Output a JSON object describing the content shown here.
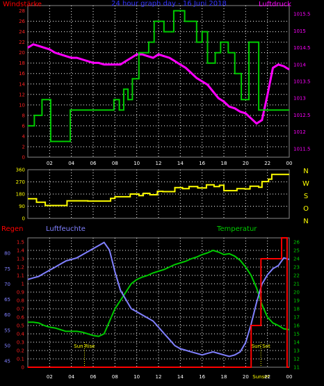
{
  "chart_data": [
    {
      "type": "line",
      "title": "24 hour graph day - 16 Juni 2018",
      "left_label": "Windstärke",
      "right_label": "Luftdruck",
      "x_ticks": [
        "02",
        "04",
        "06",
        "08",
        "10",
        "12",
        "14",
        "16",
        "18",
        "20",
        "22",
        "00"
      ],
      "y_left_ticks": [
        "28",
        "26",
        "24",
        "22",
        "20",
        "18",
        "16",
        "14",
        "12",
        "10",
        "8",
        "6",
        "4",
        "2",
        "0"
      ],
      "y_left_range": [
        0,
        29
      ],
      "y_right_ticks": [
        "1015.5",
        "1015",
        "1014.5",
        "1014",
        "1013.5",
        "1013",
        "1012.5",
        "1012",
        "1011.5"
      ],
      "y_right_range": [
        1011.25,
        1015.75
      ],
      "grid": true,
      "colors": {
        "wind": "#00cc00",
        "pressure": "#ff00ff"
      },
      "series": [
        {
          "name": "Windstärke",
          "axis": "left",
          "x": [
            0,
            0.6,
            0.6,
            1.3,
            1.3,
            2.1,
            2.1,
            3.9,
            3.9,
            7.9,
            7.9,
            8.4,
            8.4,
            8.8,
            8.8,
            9.2,
            9.2,
            9.6,
            9.6,
            10.2,
            10.2,
            11.1,
            11.1,
            11.6,
            11.6,
            12.5,
            12.5,
            13.4,
            13.4,
            14.4,
            14.4,
            15.5,
            15.5,
            16.0,
            16.0,
            16.5,
            16.5,
            17.2,
            17.2,
            17.7,
            17.7,
            18.4,
            18.4,
            19.0,
            19.0,
            19.6,
            19.6,
            20.3,
            20.3,
            21.2,
            21.2,
            22.2,
            22.2,
            24
          ],
          "y": [
            6,
            6,
            8,
            8,
            11,
            11,
            3,
            3,
            9,
            9,
            11,
            11,
            9,
            9,
            13,
            13,
            11,
            11,
            15,
            15,
            20,
            20,
            22,
            22,
            26,
            26,
            24,
            24,
            28,
            28,
            26,
            26,
            22,
            22,
            24,
            24,
            18,
            18,
            20,
            20,
            22,
            22,
            20,
            20,
            16,
            16,
            11,
            11,
            22,
            22,
            9,
            9,
            9,
            9
          ]
        },
        {
          "name": "Luftdruck",
          "axis": "right",
          "x": [
            0,
            0.5,
            1,
            1.5,
            2,
            2.5,
            3,
            3.5,
            4,
            4.5,
            5,
            5.5,
            6,
            6.5,
            7,
            7.5,
            8,
            8.5,
            9,
            9.5,
            10,
            10.5,
            11,
            11.5,
            12,
            12.5,
            13,
            13.5,
            14,
            14.5,
            15,
            15.5,
            16,
            16.5,
            17,
            17.5,
            18,
            18.5,
            19,
            19.5,
            20,
            20.5,
            21,
            21.5,
            22,
            22.5,
            23,
            23.5,
            24
          ],
          "y": [
            1014.5,
            1014.6,
            1014.55,
            1014.5,
            1014.45,
            1014.35,
            1014.3,
            1014.25,
            1014.2,
            1014.2,
            1014.15,
            1014.1,
            1014.05,
            1014.05,
            1014.0,
            1014.0,
            1014.0,
            1014.0,
            1014.1,
            1014.2,
            1014.3,
            1014.3,
            1014.25,
            1014.2,
            1014.3,
            1014.25,
            1014.2,
            1014.1,
            1014.0,
            1013.9,
            1013.75,
            1013.6,
            1013.5,
            1013.4,
            1013.2,
            1013.0,
            1012.9,
            1012.75,
            1012.7,
            1012.6,
            1012.55,
            1012.4,
            1012.25,
            1012.35,
            1013.1,
            1013.9,
            1014.0,
            1013.95,
            1013.85
          ]
        }
      ]
    },
    {
      "type": "line",
      "right_side_labels": [
        "N",
        "W",
        "S",
        "O",
        "N"
      ],
      "y_ticks": [
        "360",
        "270",
        "180",
        "90",
        "0"
      ],
      "y_range": [
        0,
        360
      ],
      "grid": true,
      "color": "#ffff00",
      "series": [
        {
          "name": "wind direction",
          "x": [
            0,
            0.8,
            0.8,
            1.6,
            1.6,
            3.6,
            3.6,
            5.5,
            5.5,
            7.6,
            7.6,
            8.0,
            8.0,
            9.4,
            9.4,
            10.2,
            10.2,
            10.6,
            10.6,
            11.2,
            11.2,
            11.9,
            11.9,
            12.4,
            12.4,
            13.5,
            13.5,
            14.2,
            14.2,
            14.8,
            14.8,
            15.6,
            15.6,
            16.4,
            16.4,
            17.1,
            17.1,
            17.6,
            17.6,
            18.0,
            18.0,
            19.2,
            19.2,
            19.9,
            19.9,
            20.4,
            20.4,
            21.2,
            21.2,
            21.5,
            21.5,
            22.1,
            22.1,
            22.4,
            22.4,
            24
          ],
          "y": [
            145,
            145,
            120,
            120,
            95,
            95,
            130,
            130,
            128,
            128,
            148,
            148,
            160,
            160,
            180,
            180,
            168,
            168,
            185,
            185,
            175,
            175,
            200,
            200,
            198,
            198,
            228,
            228,
            220,
            220,
            235,
            235,
            225,
            225,
            248,
            248,
            235,
            235,
            245,
            245,
            205,
            205,
            220,
            220,
            218,
            218,
            238,
            238,
            230,
            230,
            272,
            272,
            290,
            290,
            325,
            325
          ]
        }
      ]
    },
    {
      "type": "line",
      "left_labels": [
        "Regen",
        "Luftfeuchte"
      ],
      "center_label": "Temperatur",
      "y_rain_ticks": [
        "1.5",
        "1.4",
        "1.3",
        "1.2",
        "1.1",
        "1",
        "0.9",
        "0.8",
        "0.7",
        "0.6",
        "0.5",
        "0.4",
        "0.3",
        "0.2",
        "0.1",
        "0"
      ],
      "y_rain_range": [
        0,
        1.55
      ],
      "y_humidity_ticks": [
        "80",
        "75",
        "70",
        "65",
        "60",
        "55",
        "50",
        "45"
      ],
      "y_humidity_range": [
        43,
        85
      ],
      "y_temp_ticks": [
        "26",
        "25",
        "24",
        "23",
        "22",
        "21",
        "20",
        "19",
        "18",
        "17",
        "16",
        "15",
        "14",
        "13",
        "12",
        "11"
      ],
      "y_temp_range": [
        11,
        26.5
      ],
      "x_ticks": [
        "02",
        "04",
        "06",
        "08",
        "10",
        "12",
        "14",
        "16",
        "18",
        "20",
        "22",
        "00"
      ],
      "markers": [
        {
          "label": "Sun Rise",
          "x": 5.2
        },
        {
          "label": "Sun Set",
          "x": 21.4
        }
      ],
      "extra_label": "Sunset",
      "grid": true,
      "colors": {
        "rain": "#ff0000",
        "humidity": "#8080ff",
        "temperature": "#00cc00"
      },
      "series": [
        {
          "name": "Regen",
          "x": [
            0,
            20.5,
            20.5,
            21.4,
            21.4,
            23.3,
            23.3,
            23.8,
            23.8,
            24
          ],
          "y": [
            0,
            0,
            0.5,
            0.5,
            1.3,
            1.3,
            1.55,
            1.55,
            0,
            0
          ]
        },
        {
          "name": "Luftfeuchte",
          "x": [
            0,
            0.5,
            1,
            1.5,
            2,
            2.5,
            3,
            3.5,
            4,
            4.5,
            5,
            5.5,
            6,
            6.5,
            7,
            7.5,
            8,
            8.5,
            9,
            9.5,
            10,
            10.5,
            11,
            11.5,
            12,
            12.5,
            13,
            13.5,
            14,
            14.5,
            15,
            15.5,
            16,
            16.5,
            17,
            17.5,
            18,
            18.5,
            19,
            19.5,
            20,
            20.5,
            21,
            21.5,
            22,
            22.5,
            23,
            23.5,
            24
          ],
          "y": [
            71.5,
            72,
            72.5,
            73.5,
            74.5,
            75.5,
            76.5,
            77.5,
            78,
            78.5,
            79.5,
            80.5,
            81.5,
            82.5,
            83.5,
            81,
            74,
            68,
            65,
            62,
            61,
            60,
            59,
            58,
            56,
            54,
            52,
            50,
            49,
            48.5,
            48,
            47.5,
            47,
            47.5,
            48,
            47.5,
            47,
            46.5,
            47,
            48,
            51,
            57,
            64,
            70,
            73,
            75,
            76,
            78.5,
            78
          ]
        },
        {
          "name": "Temperatur",
          "x": [
            0,
            0.5,
            1,
            1.5,
            2,
            2.5,
            3,
            3.5,
            4,
            4.5,
            5,
            5.5,
            6,
            6.5,
            7,
            7.5,
            8,
            8.5,
            9,
            9.5,
            10,
            10.5,
            11,
            11.5,
            12,
            12.5,
            13,
            13.5,
            14,
            14.5,
            15,
            15.5,
            16,
            16.5,
            17,
            17.5,
            18,
            18.5,
            19,
            19.5,
            20,
            20.5,
            21,
            21.5,
            22,
            22.5,
            23,
            23.5,
            24
          ],
          "y": [
            16.4,
            16.4,
            16.3,
            16.0,
            15.8,
            15.7,
            15.5,
            15.3,
            15.3,
            15.3,
            15.2,
            15.0,
            14.8,
            14.7,
            15.0,
            16.5,
            18,
            19,
            20.0,
            21.0,
            21.5,
            21.8,
            22,
            22.3,
            22.5,
            22.7,
            23,
            23.3,
            23.5,
            23.7,
            24,
            24.2,
            24.5,
            24.7,
            25,
            24.8,
            24.5,
            24.6,
            24.3,
            23.8,
            23,
            22,
            20.5,
            18.5,
            17,
            16.3,
            16,
            15.6,
            15.5
          ]
        }
      ]
    }
  ]
}
